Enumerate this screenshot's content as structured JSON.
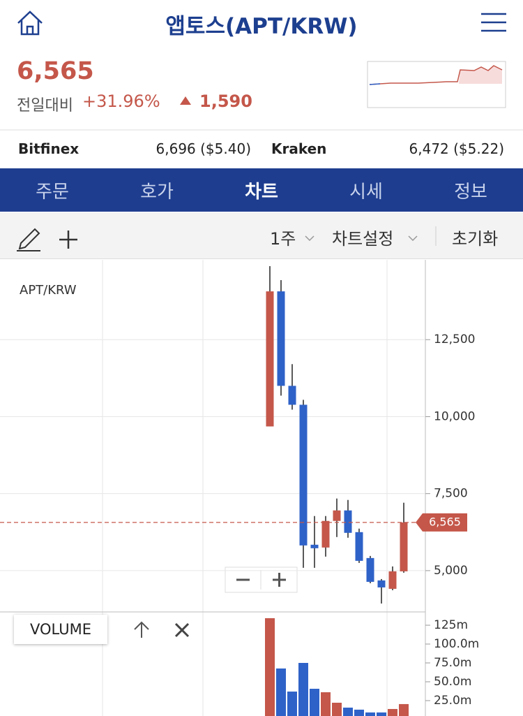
{
  "header": {
    "title": "앱토스(APT/KRW)"
  },
  "ticker": {
    "price": "6,565",
    "change_label": "전일대비",
    "change_pct": "+31.96%",
    "change_amount": "1,590"
  },
  "exchanges": [
    {
      "name": "Bitfinex",
      "price": "6,696 ($5.40)"
    },
    {
      "name": "Kraken",
      "price": "6,472 ($5.22)"
    }
  ],
  "tabs": [
    "주문",
    "호가",
    "차트",
    "시세",
    "정보"
  ],
  "toolbar": {
    "period": "1주",
    "settings": "차트설정",
    "reset": "초기화"
  },
  "chart_data": [
    {
      "type": "candlestick",
      "title": "APT/KRW",
      "open": [
        9682,
        14068,
        11000,
        10386,
        5841,
        5750,
        6614,
        6955,
        6250,
        5409,
        4682,
        4409,
        4977
      ],
      "high": [
        14886,
        14432,
        11705,
        10545,
        6773,
        6773,
        7341,
        7295,
        6364,
        5477,
        4727,
        5136,
        7205
      ],
      "low": [
        9682,
        10682,
        10227,
        5091,
        5091,
        5455,
        6091,
        6068,
        5250,
        4591,
        3932,
        4364,
        4932
      ],
      "close": [
        14068,
        11000,
        10386,
        5818,
        5727,
        6614,
        6955,
        6227,
        5318,
        4636,
        4455,
        4977,
        6565
      ],
      "up_color": "#c4574a",
      "down_color": "#2f62c8",
      "ylim": [
        3682,
        15091
      ],
      "yticks": [
        {
          "value": 5000,
          "label": "5,000"
        },
        {
          "value": 7500,
          "label": "7,500"
        },
        {
          "value": 10000,
          "label": "10,000"
        },
        {
          "value": 12500,
          "label": "12,500"
        }
      ],
      "grid": true,
      "last_price": {
        "value": 6565,
        "label": "6,565"
      }
    },
    {
      "type": "bar",
      "title": "VOLUME",
      "values": [
        134.3,
        67.6,
        37.0,
        75.0,
        40.7,
        36.1,
        22.2,
        15.7,
        13.0,
        9.3,
        9.3,
        13.9,
        20.4
      ],
      "colors": [
        "#c4574a",
        "#2f62c8",
        "#2f62c8",
        "#2f62c8",
        "#2f62c8",
        "#c4574a",
        "#c4574a",
        "#2f62c8",
        "#2f62c8",
        "#2f62c8",
        "#2f62c8",
        "#c4574a",
        "#c4574a"
      ],
      "ylim": [
        4.6,
        141.7
      ],
      "yticks": [
        {
          "value": 25,
          "label": "25.0m"
        },
        {
          "value": 50,
          "label": "50.0m"
        },
        {
          "value": 75,
          "label": "75.0m"
        },
        {
          "value": 100,
          "label": "100.0m"
        },
        {
          "value": 125,
          "label": "125m"
        }
      ]
    }
  ]
}
